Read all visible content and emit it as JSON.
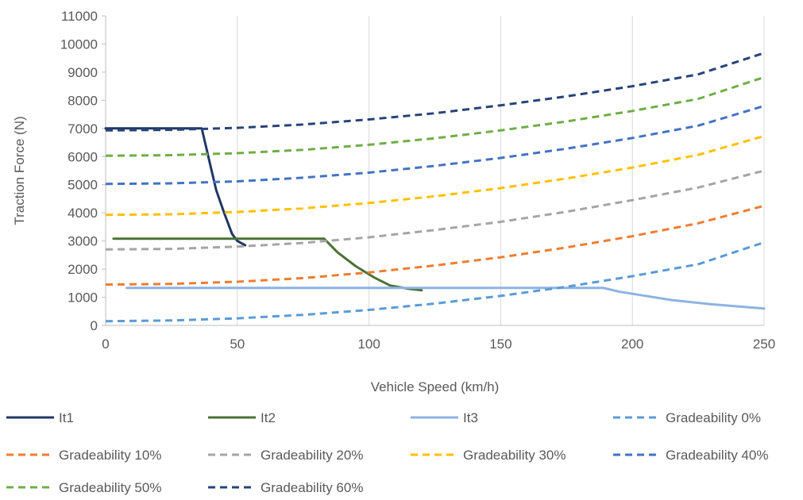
{
  "chart_data": {
    "type": "line",
    "xlabel": "Vehicle Speed (km/h)",
    "ylabel": "Traction Force (N)",
    "xlim": [
      0,
      250
    ],
    "ylim": [
      0,
      11000
    ],
    "xticks": [
      0,
      50,
      100,
      150,
      200,
      250
    ],
    "yticks": [
      0,
      1000,
      2000,
      3000,
      4000,
      5000,
      6000,
      7000,
      8000,
      9000,
      10000,
      11000
    ],
    "grid": "vertical",
    "legend_position": "bottom",
    "series": [
      {
        "name": "It1",
        "color": "#203864",
        "style": "solid",
        "x": [
          0,
          36.5,
          38,
          40,
          42,
          45,
          48,
          50,
          53
        ],
        "y": [
          7000,
          7000,
          6400,
          5600,
          4800,
          4000,
          3250,
          3000,
          2850
        ]
      },
      {
        "name": "It2",
        "color": "#4b7236",
        "style": "solid",
        "x": [
          3,
          83,
          88,
          95,
          102,
          108,
          115,
          120
        ],
        "y": [
          3080,
          3080,
          2600,
          2100,
          1700,
          1420,
          1300,
          1250
        ]
      },
      {
        "name": "It3",
        "color": "#8db3e2",
        "style": "solid",
        "x": [
          8,
          189,
          195,
          205,
          215,
          230,
          250
        ],
        "y": [
          1330,
          1330,
          1200,
          1050,
          900,
          750,
          600
        ]
      },
      {
        "name": "Gradeability 0%",
        "color": "#5b9bd5",
        "style": "dashed",
        "x": [
          0,
          25,
          50,
          75,
          100,
          125,
          150,
          175,
          200,
          225,
          250
        ],
        "y": [
          150,
          175,
          250,
          375,
          550,
          775,
          1050,
          1375,
          1750,
          2175,
          2950
        ]
      },
      {
        "name": "Gradeability 10%",
        "color": "#ed7d31",
        "style": "dashed",
        "x": [
          0,
          25,
          50,
          75,
          100,
          125,
          150,
          175,
          200,
          225,
          250
        ],
        "y": [
          1450,
          1475,
          1550,
          1680,
          1880,
          2130,
          2420,
          2770,
          3170,
          3630,
          4250
        ]
      },
      {
        "name": "Gradeability 20%",
        "color": "#a5a5a5",
        "style": "dashed",
        "x": [
          0,
          25,
          50,
          75,
          100,
          125,
          150,
          175,
          200,
          225,
          250
        ],
        "y": [
          2700,
          2720,
          2800,
          2930,
          3130,
          3390,
          3680,
          4040,
          4450,
          4900,
          5500
        ]
      },
      {
        "name": "Gradeability 30%",
        "color": "#ffc000",
        "style": "dashed",
        "x": [
          0,
          25,
          50,
          75,
          100,
          125,
          150,
          175,
          200,
          225,
          250
        ],
        "y": [
          3930,
          3950,
          4030,
          4160,
          4350,
          4590,
          4880,
          5220,
          5610,
          6060,
          6730
        ]
      },
      {
        "name": "Gradeability 40%",
        "color": "#4472c4",
        "style": "dashed",
        "x": [
          0,
          25,
          50,
          75,
          100,
          125,
          150,
          175,
          200,
          225,
          250
        ],
        "y": [
          5030,
          5050,
          5120,
          5250,
          5430,
          5670,
          5950,
          6280,
          6660,
          7100,
          7800
        ]
      },
      {
        "name": "Gradeability 50%",
        "color": "#70ad47",
        "style": "dashed",
        "x": [
          0,
          25,
          50,
          75,
          100,
          125,
          150,
          175,
          200,
          225,
          250
        ],
        "y": [
          6030,
          6050,
          6120,
          6240,
          6420,
          6650,
          6930,
          7250,
          7620,
          8050,
          8820
        ]
      },
      {
        "name": "Gradeability 60%",
        "color": "#264478",
        "style": "dashed",
        "x": [
          0,
          25,
          50,
          75,
          100,
          125,
          150,
          175,
          200,
          225,
          250
        ],
        "y": [
          6930,
          6950,
          7020,
          7140,
          7320,
          7540,
          7820,
          8140,
          8500,
          8920,
          9680
        ]
      }
    ]
  }
}
